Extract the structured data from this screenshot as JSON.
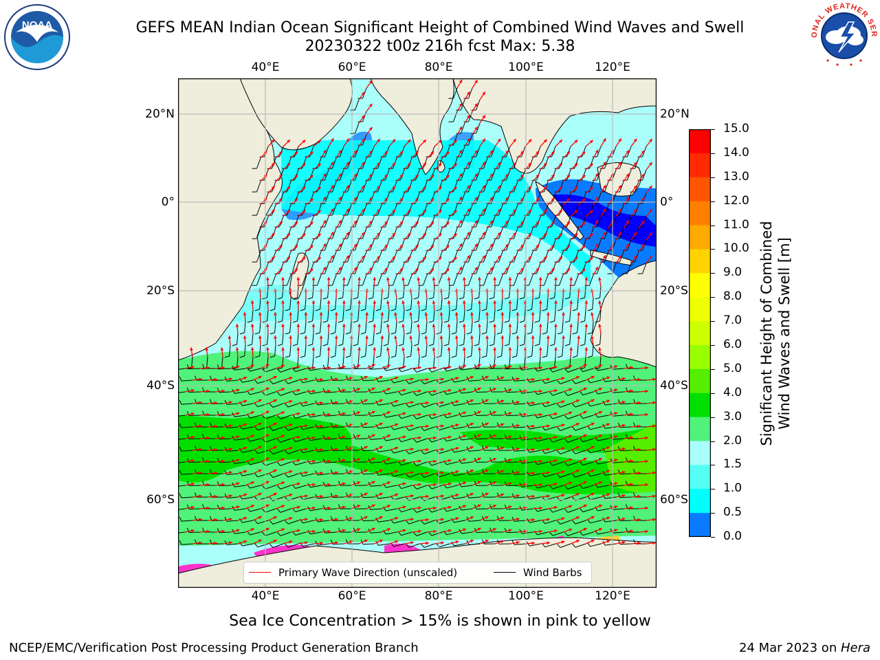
{
  "title": {
    "line1": "GEFS MEAN Indian Ocean Significant Height of Combined Wind Waves and Swell",
    "line2": "20230322 t00z 216h fcst   Max: 5.38"
  },
  "logos": {
    "left_name": "noaa-logo",
    "left_text": "NOAA",
    "right_name": "national-weather-service-logo",
    "right_text": "NATIONAL WEATHER SERVICE"
  },
  "map": {
    "lon_ticks": [
      "40°E",
      "60°E",
      "80°E",
      "100°E",
      "120°E"
    ],
    "lat_ticks": [
      "20°N",
      "0°",
      "20°S",
      "40°S",
      "60°S"
    ],
    "colors": {
      "land": "#efeddc",
      "grid": "#bbbbbb",
      "wave_arrow": "#ff0000",
      "wind_barb": "#000000",
      "sea_ice": "#ff33cc"
    }
  },
  "legend": {
    "primary_wave": "Primary Wave Direction (unscaled)",
    "wind_barbs": "Wind Barbs"
  },
  "colorbar": {
    "title_line1": "Significant Height of Combined",
    "title_line2": "Wind Waves and Swell [m]",
    "labels": [
      "15.0",
      "14.0",
      "13.0",
      "12.0",
      "11.0",
      "10.0",
      "9.0",
      "8.0",
      "7.0",
      "6.0",
      "5.0",
      "4.0",
      "3.0",
      "2.0",
      "1.5",
      "1.0",
      "0.5",
      "0.0"
    ],
    "colors": [
      "#ff0000",
      "#ff2a00",
      "#ff5500",
      "#ff8000",
      "#ffaa00",
      "#ffd200",
      "#ffff00",
      "#eeff00",
      "#ccff00",
      "#99ff00",
      "#55ee00",
      "#00e000",
      "#50f27a",
      "#a8fffb",
      "#55fff5",
      "#00ffff",
      "#0a7bff",
      "#0000ff"
    ]
  },
  "caption": "Sea Ice Concentration > 15% is shown in pink to yellow",
  "footer": {
    "left": "NCEP/EMC/Verification Post Processing Product Generation Branch",
    "right_prefix": "24 Mar 2023 on ",
    "right_host": "Hera"
  }
}
